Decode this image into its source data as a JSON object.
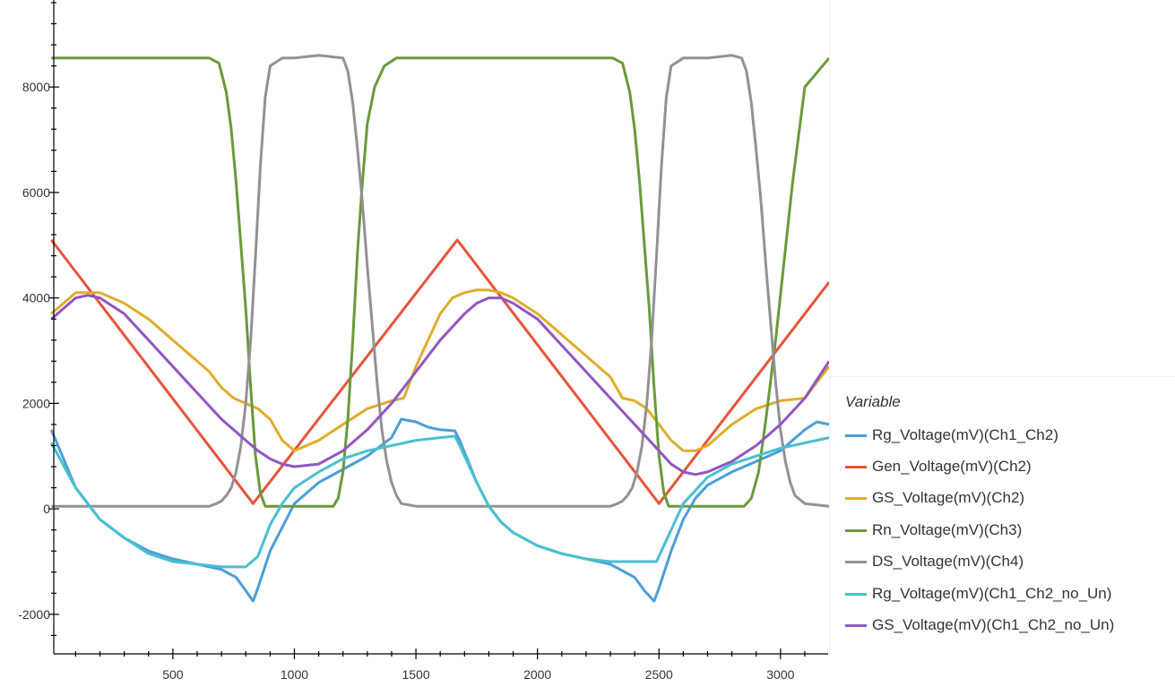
{
  "chart_data": {
    "type": "line",
    "x_range": [
      0,
      3200
    ],
    "y_range": [
      -2800,
      9600
    ],
    "x_ticks": [
      500,
      1000,
      1500,
      2000,
      2500,
      3000
    ],
    "y_ticks": [
      -2000,
      0,
      2000,
      4000,
      6000,
      8000
    ],
    "legend_title": "Variable",
    "legend_position": "right",
    "series": [
      {
        "name": "Rg_Voltage(mV)(Ch1_Ch2)",
        "color": "#4c9ed9",
        "x": [
          0,
          100,
          200,
          300,
          400,
          500,
          600,
          700,
          760,
          800,
          830,
          850,
          900,
          1000,
          1100,
          1200,
          1300,
          1400,
          1440,
          1500,
          1550,
          1600,
          1660,
          1680,
          1750,
          1800,
          1850,
          1900,
          2000,
          2100,
          2200,
          2300,
          2400,
          2440,
          2480,
          2500,
          2550,
          2600,
          2650,
          2700,
          2800,
          2900,
          3000,
          3100,
          3150,
          3200
        ],
        "y": [
          1500,
          400,
          -200,
          -550,
          -800,
          -950,
          -1050,
          -1150,
          -1300,
          -1550,
          -1750,
          -1500,
          -800,
          100,
          500,
          750,
          1000,
          1350,
          1700,
          1650,
          1550,
          1500,
          1480,
          1300,
          500,
          50,
          -250,
          -450,
          -700,
          -850,
          -950,
          -1050,
          -1300,
          -1550,
          -1750,
          -1500,
          -800,
          -200,
          200,
          450,
          700,
          900,
          1100,
          1500,
          1650,
          1600
        ]
      },
      {
        "name": "Gen_Voltage(mV)(Ch2)",
        "color": "#e8533a",
        "x": [
          0,
          830,
          1670,
          2500,
          3200
        ],
        "y": [
          5100,
          100,
          5100,
          100,
          4300
        ]
      },
      {
        "name": "GS_Voltage(mV)(Ch2)",
        "color": "#e0ac2b",
        "x": [
          0,
          100,
          200,
          300,
          400,
          500,
          600,
          650,
          700,
          750,
          800,
          850,
          900,
          950,
          1000,
          1100,
          1200,
          1300,
          1400,
          1450,
          1500,
          1550,
          1600,
          1650,
          1700,
          1750,
          1800,
          1850,
          1900,
          2000,
          2100,
          2200,
          2300,
          2350,
          2400,
          2450,
          2500,
          2550,
          2600,
          2650,
          2700,
          2800,
          2900,
          3000,
          3100,
          3200
        ],
        "y": [
          3700,
          4100,
          4100,
          3900,
          3600,
          3200,
          2800,
          2600,
          2300,
          2100,
          2000,
          1900,
          1700,
          1300,
          1100,
          1300,
          1600,
          1900,
          2050,
          2100,
          2700,
          3200,
          3700,
          4000,
          4100,
          4150,
          4150,
          4100,
          4000,
          3700,
          3300,
          2900,
          2500,
          2100,
          2050,
          1900,
          1600,
          1300,
          1100,
          1100,
          1200,
          1600,
          1900,
          2050,
          2100,
          2700
        ]
      },
      {
        "name": "Rn_Voltage(mV)(Ch3)",
        "color": "#6a9a3c",
        "x": [
          0,
          650,
          690,
          720,
          740,
          760,
          780,
          800,
          820,
          840,
          860,
          880,
          950,
          1160,
          1180,
          1200,
          1220,
          1240,
          1260,
          1280,
          1300,
          1330,
          1370,
          1420,
          1470,
          1500,
          1850,
          2310,
          2350,
          2380,
          2400,
          2420,
          2440,
          2460,
          2480,
          2500,
          2520,
          2540,
          2580,
          2620,
          2650,
          2700,
          2800,
          2850,
          2880,
          2910,
          2940,
          2980,
          3050,
          3100,
          3200
        ],
        "y": [
          8550,
          8550,
          8450,
          7900,
          7200,
          6200,
          5000,
          3800,
          2300,
          1000,
          300,
          50,
          50,
          50,
          200,
          700,
          1700,
          3200,
          4900,
          6200,
          7300,
          8000,
          8400,
          8550,
          8550,
          8550,
          8550,
          8550,
          8450,
          7900,
          7200,
          6200,
          5000,
          3800,
          2300,
          1000,
          300,
          50,
          50,
          50,
          50,
          50,
          50,
          50,
          200,
          700,
          1700,
          3200,
          6200,
          8000,
          8550
        ]
      },
      {
        "name": "DS_Voltage(mV)(Ch4)",
        "color": "#929292",
        "x": [
          0,
          650,
          680,
          700,
          720,
          740,
          760,
          780,
          800,
          820,
          840,
          860,
          880,
          900,
          950,
          1000,
          1100,
          1200,
          1220,
          1240,
          1260,
          1280,
          1300,
          1320,
          1340,
          1360,
          1380,
          1400,
          1420,
          1440,
          1500,
          2000,
          2300,
          2330,
          2350,
          2370,
          2390,
          2410,
          2430,
          2450,
          2470,
          2490,
          2510,
          2530,
          2550,
          2600,
          2700,
          2800,
          2840,
          2860,
          2880,
          2900,
          2920,
          2940,
          2960,
          2980,
          3000,
          3020,
          3040,
          3060,
          3100,
          3200
        ],
        "y": [
          50,
          50,
          100,
          150,
          250,
          400,
          700,
          1200,
          2000,
          3200,
          4800,
          6500,
          7800,
          8400,
          8550,
          8550,
          8600,
          8550,
          8300,
          7700,
          6800,
          5800,
          4600,
          3500,
          2400,
          1500,
          900,
          500,
          250,
          100,
          50,
          50,
          50,
          100,
          150,
          250,
          400,
          700,
          1200,
          2000,
          3200,
          4800,
          6500,
          7800,
          8400,
          8550,
          8550,
          8600,
          8550,
          8300,
          7700,
          6800,
          5800,
          4600,
          3500,
          2400,
          1500,
          900,
          500,
          250,
          100,
          50
        ]
      },
      {
        "name": "Rg_Voltage(mV)(Ch1_Ch2_no_Un)",
        "color": "#49c0d0",
        "x": [
          0,
          100,
          200,
          300,
          400,
          500,
          600,
          700,
          800,
          850,
          900,
          950,
          1000,
          1100,
          1200,
          1300,
          1400,
          1500,
          1600,
          1660,
          1680,
          1750,
          1800,
          1850,
          1900,
          2000,
          2100,
          2200,
          2300,
          2400,
          2490,
          2520,
          2560,
          2600,
          2650,
          2700,
          2800,
          2900,
          3000,
          3100,
          3200
        ],
        "y": [
          1250,
          400,
          -200,
          -550,
          -850,
          -1000,
          -1050,
          -1100,
          -1100,
          -900,
          -300,
          100,
          400,
          700,
          950,
          1100,
          1200,
          1300,
          1350,
          1380,
          1200,
          500,
          50,
          -250,
          -450,
          -700,
          -850,
          -950,
          -1000,
          -1000,
          -1000,
          -700,
          -300,
          100,
          350,
          600,
          850,
          1000,
          1150,
          1250,
          1350
        ]
      },
      {
        "name": "GS_Voltage(mV)(Ch1_Ch2_no_Un)",
        "color": "#8f57c2",
        "x": [
          0,
          100,
          150,
          200,
          300,
          400,
          500,
          600,
          700,
          800,
          850,
          900,
          950,
          1000,
          1100,
          1200,
          1300,
          1400,
          1500,
          1600,
          1700,
          1750,
          1800,
          1850,
          1900,
          2000,
          2100,
          2200,
          2300,
          2400,
          2500,
          2550,
          2600,
          2650,
          2700,
          2800,
          2900,
          3000,
          3100,
          3200
        ],
        "y": [
          3600,
          4000,
          4050,
          4000,
          3700,
          3200,
          2700,
          2200,
          1700,
          1300,
          1100,
          950,
          850,
          800,
          850,
          1100,
          1500,
          2000,
          2600,
          3200,
          3700,
          3900,
          4000,
          4000,
          3900,
          3600,
          3100,
          2600,
          2100,
          1600,
          1100,
          850,
          700,
          650,
          700,
          900,
          1200,
          1600,
          2100,
          2800
        ]
      }
    ]
  }
}
